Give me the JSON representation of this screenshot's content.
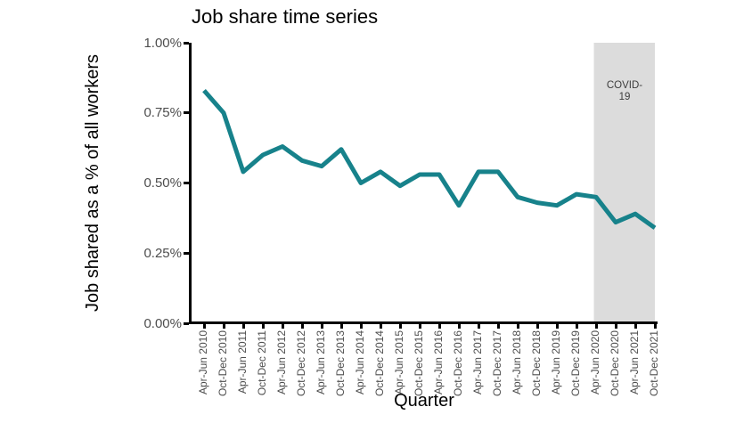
{
  "title": "Job share time series",
  "y_axis": {
    "label": "Job shared as a % of all workers"
  },
  "x_axis": {
    "label": "Quarter"
  },
  "annotation": {
    "line1": "COVID-",
    "line2": "19",
    "label": "COVID-19"
  },
  "colors": {
    "line": "#17828b",
    "covid_region": "#dcdcdc",
    "axis": "#000000",
    "tick_label": "#4d4d4d"
  },
  "chart_data": {
    "type": "line",
    "title": "Job share time series",
    "xlabel": "Quarter",
    "ylabel": "Job shared as a % of all workers",
    "ylim": [
      0,
      1.0
    ],
    "grid": false,
    "legend": false,
    "y_tick_values": [
      1.0,
      0.75,
      0.5,
      0.25,
      0.0
    ],
    "y_tick_labels": [
      "1.00%",
      "0.75%",
      "0.50%",
      "0.25%",
      "0.00%"
    ],
    "categories": [
      "Apr-Jun 2010",
      "Oct-Dec 2010",
      "Apr-Jun 2011",
      "Oct-Dec 2011",
      "Apr-Jun 2012",
      "Oct-Dec 2012",
      "Apr-Jun 2013",
      "Oct-Dec 2013",
      "Apr-Jun 2014",
      "Oct-Dec 2014",
      "Apr-Jun 2015",
      "Oct-Dec 2015",
      "Apr-Jun 2016",
      "Oct-Dec 2016",
      "Apr-Jun 2017",
      "Oct-Dec 2017",
      "Apr-Jun 2018",
      "Oct-Dec 2018",
      "Apr-Jun 2019",
      "Oct-Dec 2019",
      "Apr-Jun 2020",
      "Oct-Dec 2020",
      "Apr-Jun 2021",
      "Oct-Dec 2021"
    ],
    "values": [
      0.83,
      0.75,
      0.54,
      0.6,
      0.63,
      0.58,
      0.56,
      0.62,
      0.5,
      0.54,
      0.49,
      0.53,
      0.53,
      0.42,
      0.54,
      0.54,
      0.45,
      0.43,
      0.42,
      0.46,
      0.45,
      0.36,
      0.39,
      0.34
    ],
    "shaded_region": {
      "label": "COVID-19",
      "x_start": "Apr-Jun 2020",
      "x_end": "Oct-Dec 2021"
    }
  }
}
